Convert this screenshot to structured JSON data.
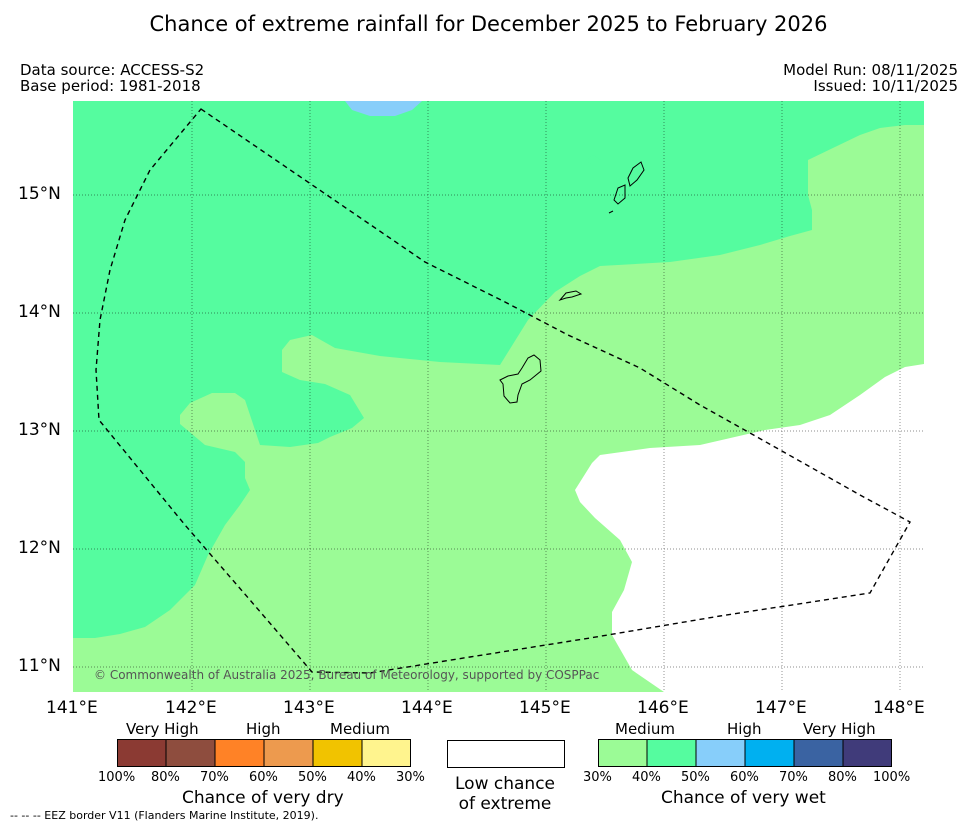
{
  "title": "Chance of extreme rainfall for December 2025 to February 2026",
  "meta": {
    "data_source": "Data source: ACCESS-S2",
    "base_period": "Base period: 1981-2018",
    "model_run": "Model Run: 08/11/2025",
    "issued": "Issued: 10/11/2025"
  },
  "map": {
    "lon_ticks": [
      "141°E",
      "142°E",
      "143°E",
      "144°E",
      "145°E",
      "146°E",
      "147°E",
      "148°E"
    ],
    "lat_ticks": [
      "15°N",
      "14°N",
      "13°N",
      "12°N",
      "11°N"
    ],
    "copyright": "© Commonwealth of Australia 2025, Bureau of Meteorology, supported by COSPPac",
    "colors": {
      "medium_wet": "#9bfb96",
      "high_wet": "#55fc9f",
      "very_high_wet_light": "#87cefa",
      "low_chance": "#ffffff"
    }
  },
  "legend": {
    "dry": {
      "categories": [
        "Very High",
        "High",
        "Medium"
      ],
      "ticks": [
        "100%",
        "80%",
        "70%",
        "60%",
        "50%",
        "40%",
        "30%"
      ],
      "colors": [
        "#8b3a33",
        "#8e4d3e",
        "#ff8226",
        "#ed9a4e",
        "#f1c300",
        "#fff48e"
      ],
      "label": "Chance of very dry"
    },
    "neutral": {
      "label_line1": "Low chance",
      "label_line2": "of extreme"
    },
    "wet": {
      "categories": [
        "Medium",
        "High",
        "Very High"
      ],
      "ticks": [
        "30%",
        "40%",
        "50%",
        "60%",
        "70%",
        "80%",
        "100%"
      ],
      "colors": [
        "#9bfb96",
        "#55fc9f",
        "#87cefa",
        "#00b0f0",
        "#3a63a2",
        "#403b7a"
      ],
      "label": "Chance of very wet"
    }
  },
  "footnote": "--  --  -- EEZ border V11 (Flanders Marine Institute, 2019)."
}
